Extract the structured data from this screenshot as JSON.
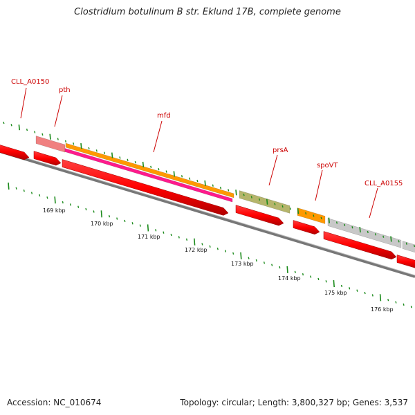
{
  "title": "Clostridium botulinum B str. Eklund 17B, complete genome",
  "footer": {
    "accession": "Accession: NC_010674",
    "summary": "Topology: circular; Length: 3,800,327 bp; Genes: 3,537"
  },
  "colors": {
    "gene_red": "#ff0000",
    "tick_green": "#1a8a1a",
    "backbone_gray": "#777777",
    "label_red": "#cc0000"
  },
  "genes": [
    {
      "label": "CLL_A0150",
      "color": "#ff0000",
      "strand": "minus"
    },
    {
      "label": "pth",
      "color": "#ff0000",
      "strand": "minus"
    },
    {
      "label": "mfd",
      "color": "#ff0000",
      "strand": "minus"
    },
    {
      "label": "prsA",
      "color": "#ff0000",
      "strand": "minus"
    },
    {
      "label": "spoVT",
      "color": "#ff0000",
      "strand": "minus"
    },
    {
      "label": "CLL_A0155",
      "color": "#ff0000",
      "strand": "minus"
    }
  ],
  "features": [
    {
      "name": "pth-feature",
      "color": "#f08080"
    },
    {
      "name": "mfd-feature-orange",
      "color": "#ff9900"
    },
    {
      "name": "mfd-feature-magenta",
      "color": "#ff1a8c"
    },
    {
      "name": "prsA-feature",
      "color": "#b5b56b"
    },
    {
      "name": "spoVT-feature",
      "color": "#ff9900"
    },
    {
      "name": "CLL_A0155-feature",
      "color": "#c8c8c8"
    }
  ],
  "kbp_labels": [
    "169 kbp",
    "170 kbp",
    "171 kbp",
    "172 kbp",
    "173 kbp",
    "174 kbp",
    "175 kbp",
    "176 kbp"
  ]
}
